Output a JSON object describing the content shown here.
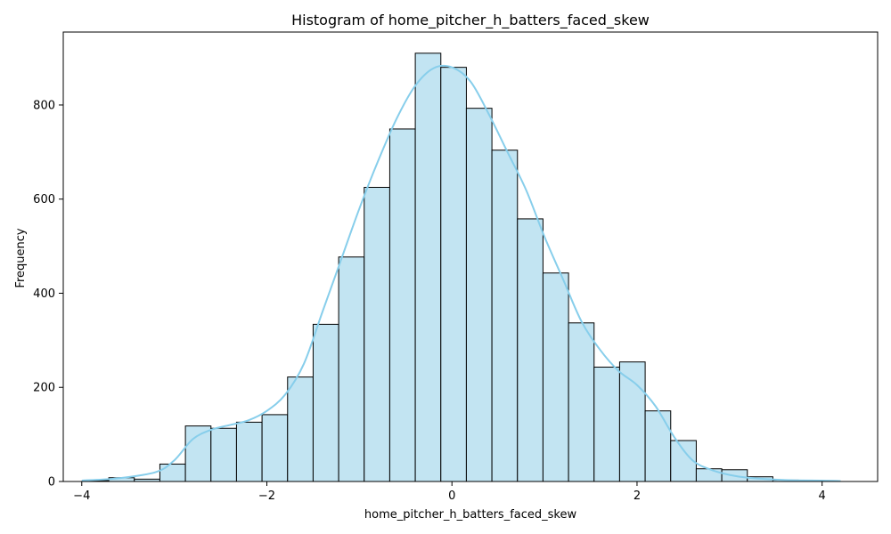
{
  "chart_data": {
    "type": "bar",
    "title": "Histogram of home_pitcher_h_batters_faced_skew",
    "xlabel": "home_pitcher_h_batters_faced_skew",
    "ylabel": "Frequency",
    "xlim": [
      -4.2,
      4.6
    ],
    "ylim": [
      0,
      955
    ],
    "x_ticks": [
      -4,
      -2,
      0,
      2,
      4
    ],
    "y_ticks": [
      0,
      200,
      400,
      600,
      800
    ],
    "x_tick_labels": [
      "−4",
      "−2",
      "0",
      "2",
      "4"
    ],
    "y_tick_labels": [
      "0",
      "200",
      "400",
      "600",
      "800"
    ],
    "grid": false,
    "bar_fill": "#c2e4f2",
    "bar_edge": "#000000",
    "kde_color": "#87ceeb",
    "bins": [
      {
        "x0": -3.984,
        "x1": -3.708,
        "count": 2
      },
      {
        "x0": -3.708,
        "x1": -3.432,
        "count": 8
      },
      {
        "x0": -3.432,
        "x1": -3.156,
        "count": 5
      },
      {
        "x0": -3.156,
        "x1": -2.88,
        "count": 37
      },
      {
        "x0": -2.88,
        "x1": -2.604,
        "count": 118
      },
      {
        "x0": -2.604,
        "x1": -2.328,
        "count": 113
      },
      {
        "x0": -2.328,
        "x1": -2.052,
        "count": 126
      },
      {
        "x0": -2.052,
        "x1": -1.776,
        "count": 142
      },
      {
        "x0": -1.776,
        "x1": -1.5,
        "count": 222
      },
      {
        "x0": -1.5,
        "x1": -1.224,
        "count": 334
      },
      {
        "x0": -1.224,
        "x1": -0.948,
        "count": 477
      },
      {
        "x0": -0.948,
        "x1": -0.672,
        "count": 625
      },
      {
        "x0": -0.672,
        "x1": -0.396,
        "count": 749
      },
      {
        "x0": -0.396,
        "x1": -0.12,
        "count": 910
      },
      {
        "x0": -0.12,
        "x1": 0.156,
        "count": 880
      },
      {
        "x0": 0.156,
        "x1": 0.432,
        "count": 793
      },
      {
        "x0": 0.432,
        "x1": 0.708,
        "count": 704
      },
      {
        "x0": 0.708,
        "x1": 0.984,
        "count": 558
      },
      {
        "x0": 0.984,
        "x1": 1.26,
        "count": 443
      },
      {
        "x0": 1.26,
        "x1": 1.536,
        "count": 337
      },
      {
        "x0": 1.536,
        "x1": 1.812,
        "count": 243
      },
      {
        "x0": 1.812,
        "x1": 2.088,
        "count": 254
      },
      {
        "x0": 2.088,
        "x1": 2.364,
        "count": 150
      },
      {
        "x0": 2.364,
        "x1": 2.64,
        "count": 87
      },
      {
        "x0": 2.64,
        "x1": 2.916,
        "count": 27
      },
      {
        "x0": 2.916,
        "x1": 3.192,
        "count": 25
      },
      {
        "x0": 3.192,
        "x1": 3.468,
        "count": 10
      },
      {
        "x0": 3.468,
        "x1": 3.744,
        "count": 3
      },
      {
        "x0": 3.744,
        "x1": 4.02,
        "count": 1
      },
      {
        "x0": 4.02,
        "x1": 4.296,
        "count": 0
      }
    ],
    "kde": {
      "x": [
        -4.0,
        -3.6,
        -3.2,
        -3.0,
        -2.8,
        -2.6,
        -2.4,
        -2.2,
        -2.0,
        -1.8,
        -1.6,
        -1.4,
        -1.2,
        -1.0,
        -0.8,
        -0.6,
        -0.4,
        -0.2,
        0.0,
        0.2,
        0.4,
        0.6,
        0.8,
        1.0,
        1.2,
        1.4,
        1.6,
        1.8,
        2.0,
        2.2,
        2.4,
        2.6,
        2.8,
        3.0,
        3.2,
        3.6,
        4.0,
        4.2
      ],
      "y": [
        2,
        7,
        20,
        45,
        90,
        110,
        120,
        130,
        150,
        185,
        250,
        360,
        470,
        580,
        680,
        770,
        840,
        878,
        880,
        850,
        780,
        700,
        620,
        520,
        430,
        340,
        280,
        235,
        205,
        160,
        95,
        45,
        25,
        14,
        8,
        3,
        2,
        1
      ]
    }
  }
}
